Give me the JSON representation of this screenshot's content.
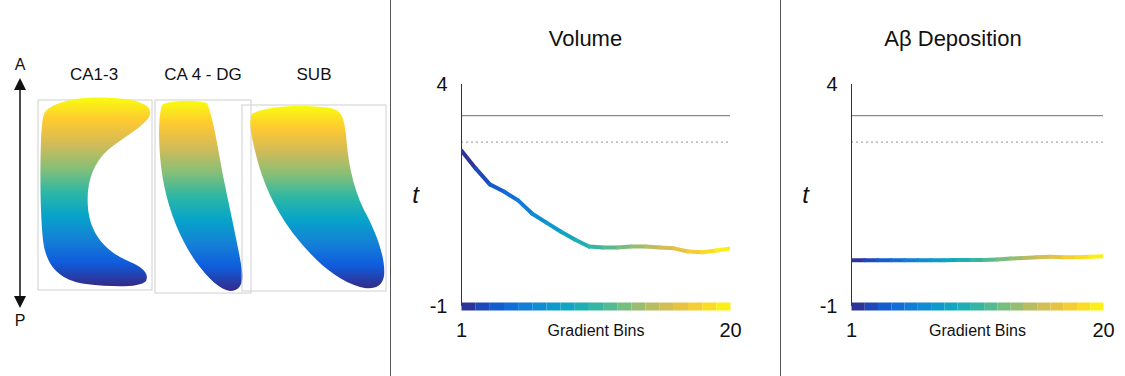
{
  "diagram": {
    "axis_labels": {
      "top": "A",
      "bottom": "P"
    },
    "subfields": [
      "CA1-3",
      "CA 4 - DG",
      "SUB"
    ]
  },
  "chart_data": [
    {
      "type": "line",
      "title": "Volume",
      "x_label": "Gradient Bins",
      "y_label": "t",
      "x": [
        1,
        2,
        3,
        4,
        5,
        6,
        7,
        8,
        9,
        10,
        11,
        12,
        13,
        14,
        15,
        16,
        17,
        18,
        19,
        20
      ],
      "values": [
        2.51,
        2.11,
        1.75,
        1.59,
        1.39,
        1.09,
        0.89,
        0.69,
        0.51,
        0.35,
        0.33,
        0.33,
        0.35,
        0.35,
        0.33,
        0.31,
        0.24,
        0.22,
        0.26,
        0.31
      ],
      "xlim": [
        1,
        20
      ],
      "xticks": [
        1,
        20
      ],
      "ylim": [
        -1,
        4
      ],
      "yticks": [
        -1,
        4
      ],
      "hlines": [
        {
          "value": 3.3,
          "line_style": "solid"
        },
        {
          "value": 2.7,
          "line_style": "dotted"
        }
      ]
    },
    {
      "type": "line",
      "title": "Aβ Deposition",
      "x_label": "Gradient Bins",
      "y_label": "t",
      "x": [
        1,
        2,
        3,
        4,
        5,
        6,
        7,
        8,
        9,
        10,
        11,
        12,
        13,
        14,
        15,
        16,
        17,
        18,
        19,
        20
      ],
      "values": [
        0.04,
        0.04,
        0.04,
        0.04,
        0.04,
        0.04,
        0.04,
        0.04,
        0.05,
        0.05,
        0.05,
        0.06,
        0.08,
        0.09,
        0.11,
        0.12,
        0.11,
        0.11,
        0.12,
        0.13
      ],
      "xlim": [
        1,
        20
      ],
      "xticks": [
        1,
        20
      ],
      "ylim": [
        -1,
        4
      ],
      "yticks": [
        -1,
        4
      ],
      "hlines": [
        {
          "value": 3.3,
          "line_style": "solid"
        },
        {
          "value": 2.7,
          "line_style": "dotted"
        }
      ]
    }
  ]
}
